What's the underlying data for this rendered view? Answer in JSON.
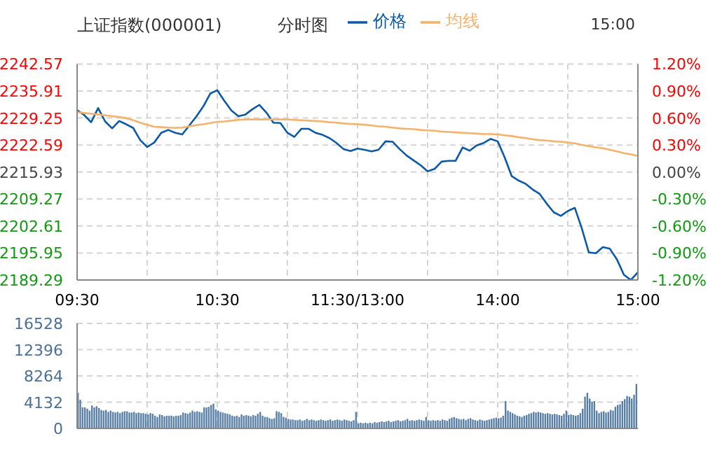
{
  "chart_data": [
    {
      "type": "line",
      "title": "上证指数(000001)",
      "subtitle": "分时图",
      "annotations": [
        "15:00"
      ],
      "categories": [
        "09:30",
        null,
        null,
        null,
        null,
        null,
        null,
        null,
        null,
        null,
        null,
        null,
        null,
        null,
        null,
        null,
        null,
        null,
        null,
        null,
        "10:30",
        null,
        null,
        null,
        null,
        null,
        null,
        null,
        null,
        null,
        null,
        null,
        null,
        null,
        null,
        null,
        null,
        null,
        null,
        null,
        "11:30/13:00",
        null,
        null,
        null,
        null,
        null,
        null,
        null,
        null,
        null,
        null,
        null,
        null,
        null,
        null,
        null,
        null,
        null,
        null,
        null,
        "14:00",
        null,
        null,
        null,
        null,
        null,
        null,
        null,
        null,
        null,
        null,
        null,
        null,
        null,
        null,
        null,
        null,
        null,
        null,
        null,
        "15:00"
      ],
      "series": [
        {
          "name": "价格",
          "color": "#0b5aa8",
          "values": [
            2231.2,
            2230.0,
            2228.2,
            2231.7,
            2228.4,
            2226.7,
            2228.5,
            2227.7,
            2226.8,
            2223.8,
            2222.1,
            2223.2,
            2225.6,
            2226.3,
            2225.6,
            2225.2,
            2227.4,
            2229.6,
            2232.1,
            2235.3,
            2236.1,
            2233.5,
            2231.1,
            2229.7,
            2230.1,
            2231.4,
            2232.5,
            2230.6,
            2228.1,
            2228.0,
            2225.6,
            2224.6,
            2226.6,
            2226.6,
            2225.6,
            2225.1,
            2224.3,
            2223.1,
            2221.6,
            2221.1,
            2221.7,
            2221.4,
            2221.0,
            2221.4,
            2223.5,
            2223.4,
            2221.6,
            2220.0,
            2218.8,
            2217.6,
            2216.1,
            2216.7,
            2218.5,
            2218.7,
            2218.7,
            2222.0,
            2221.2,
            2222.5,
            2223.1,
            2224.1,
            2223.5,
            2219.5,
            2214.9,
            2213.8,
            2213.0,
            2211.6,
            2210.5,
            2208.1,
            2206.0,
            2205.1,
            2206.3,
            2207.1,
            2202.0,
            2196.1,
            2195.9,
            2197.4,
            2197.0,
            2194.4,
            2190.6,
            2189.3,
            2191.2
          ]
        },
        {
          "name": "均线",
          "color": "#f5b26b",
          "values": [
            2230.7,
            2230.5,
            2230.3,
            2230.1,
            2229.9,
            2229.7,
            2229.5,
            2229.2,
            2228.7,
            2228.1,
            2227.6,
            2227.1,
            2227.0,
            2226.9,
            2226.8,
            2226.9,
            2227.2,
            2227.5,
            2227.7,
            2228.0,
            2228.3,
            2228.4,
            2228.6,
            2228.8,
            2228.9,
            2228.9,
            2228.9,
            2228.9,
            2228.9,
            2228.9,
            2228.9,
            2228.8,
            2228.7,
            2228.6,
            2228.5,
            2228.4,
            2228.2,
            2228.1,
            2227.9,
            2227.8,
            2227.7,
            2227.6,
            2227.4,
            2227.2,
            2227.1,
            2226.9,
            2226.7,
            2226.6,
            2226.5,
            2226.3,
            2226.2,
            2226.1,
            2225.9,
            2225.8,
            2225.7,
            2225.6,
            2225.5,
            2225.4,
            2225.3,
            2225.3,
            2225.2,
            2225.0,
            2224.8,
            2224.5,
            2224.3,
            2224.0,
            2223.8,
            2223.7,
            2223.5,
            2223.4,
            2223.2,
            2223.0,
            2222.6,
            2222.3,
            2222.0,
            2221.8,
            2221.4,
            2221.0,
            2220.6,
            2220.3,
            2219.9
          ]
        }
      ],
      "ylim": [
        2189.29,
        2242.57
      ],
      "yticks": [
        2189.29,
        2195.95,
        2202.61,
        2209.27,
        2215.93,
        2222.59,
        2229.25,
        2235.91,
        2242.57
      ],
      "y2lim": [
        -1.2,
        1.2
      ],
      "y2ticks": [
        {
          "value": -1.2,
          "label": "-1.20%"
        },
        {
          "value": -0.9,
          "label": "-0.90%"
        },
        {
          "value": -0.6,
          "label": "-0.60%"
        },
        {
          "value": -0.3,
          "label": "-0.30%"
        },
        {
          "value": 0,
          "label": "0.00%"
        },
        {
          "value": 0.3,
          "label": "0.30%"
        },
        {
          "value": 0.6,
          "label": "0.60%"
        },
        {
          "value": 0.9,
          "label": "0.90%"
        },
        {
          "value": 1.2,
          "label": "1.20%"
        }
      ],
      "grid": true,
      "legend": "top",
      "marker": "none",
      "line_style": "solid"
    },
    {
      "type": "bar",
      "color": "#5a7fa6",
      "categories": [
        null,
        null,
        null,
        null,
        null,
        null,
        null,
        null,
        null,
        null,
        null,
        null,
        null,
        null,
        null,
        null,
        null,
        null,
        null,
        null,
        null,
        null,
        null,
        null,
        null,
        null,
        null,
        null,
        null,
        null,
        null,
        null,
        null,
        null,
        null,
        null,
        null,
        null,
        null,
        null,
        null,
        null,
        null,
        null,
        null,
        null,
        null,
        null,
        null,
        null,
        null,
        null,
        null,
        null,
        null,
        null,
        null,
        null,
        null,
        null,
        null,
        null,
        null,
        null,
        null,
        null,
        null,
        null,
        null,
        null,
        null,
        null,
        null,
        null,
        null,
        null,
        null,
        null,
        null,
        null,
        null,
        null,
        null,
        null,
        null,
        null,
        null,
        null,
        null,
        null,
        null,
        null,
        null,
        null,
        null,
        null,
        null,
        null,
        null,
        null,
        null,
        null,
        null,
        null,
        null,
        null,
        null,
        null,
        null,
        null,
        null,
        null,
        null,
        null,
        null,
        null,
        null,
        null,
        null,
        null,
        null,
        null,
        null,
        null,
        null,
        null,
        null,
        null,
        null,
        null,
        null,
        null,
        null,
        null,
        null,
        null,
        null,
        null,
        null,
        null,
        null,
        null,
        null,
        null,
        null,
        null,
        null,
        null,
        null,
        null,
        null,
        null,
        null,
        null,
        null,
        null,
        null,
        null,
        null,
        null,
        null,
        null,
        null,
        null,
        null,
        null,
        null,
        null,
        null,
        null,
        null,
        null,
        null,
        null,
        null,
        null,
        null,
        null,
        null,
        null,
        null,
        null,
        null,
        null,
        null,
        null,
        null,
        null,
        null,
        null,
        null,
        null,
        null,
        null,
        null,
        null,
        null,
        null,
        null,
        null,
        null,
        null,
        null,
        null,
        null,
        null,
        null,
        null,
        null,
        null,
        null,
        null,
        null,
        null,
        null,
        null,
        null,
        null,
        null,
        null,
        null,
        null,
        null,
        null,
        null,
        null,
        null,
        null,
        null,
        null,
        null,
        null,
        null,
        null,
        null,
        null,
        null,
        null,
        null,
        null
      ],
      "values": [
        5600,
        4500,
        3300,
        3300,
        3100,
        2800,
        3600,
        3300,
        3500,
        3200,
        2900,
        2800,
        2900,
        2600,
        2800,
        2600,
        2500,
        2600,
        2400,
        2600,
        2700,
        2700,
        2500,
        2500,
        2600,
        2400,
        2500,
        2400,
        2400,
        2300,
        2200,
        2400,
        2300,
        2000,
        1800,
        2200,
        2100,
        1900,
        2000,
        2000,
        2000,
        1900,
        2000,
        2000,
        2100,
        2500,
        2400,
        2300,
        2500,
        2800,
        2600,
        2700,
        2600,
        2500,
        3300,
        3300,
        3400,
        3700,
        3900,
        3000,
        2800,
        2600,
        2500,
        2400,
        2300,
        2200,
        2000,
        1900,
        2000,
        1800,
        2200,
        2000,
        2100,
        2000,
        1900,
        2100,
        2000,
        2300,
        2600,
        2000,
        1800,
        1800,
        1600,
        1500,
        1600,
        2700,
        2600,
        2400,
        1800,
        1700,
        1500,
        1400,
        1400,
        1300,
        1300,
        1400,
        1200,
        1300,
        1500,
        1300,
        1400,
        1300,
        1200,
        1300,
        1400,
        1300,
        1200,
        1300,
        1400,
        1200,
        1300,
        1400,
        1300,
        1200,
        1400,
        1300,
        1200,
        1100,
        1300,
        2600,
        800,
        900,
        800,
        900,
        800,
        900,
        800,
        1000,
        900,
        1000,
        1100,
        1000,
        1100,
        1200,
        1000,
        1100,
        1200,
        1300,
        1100,
        1200,
        1300,
        1500,
        1200,
        1300,
        1200,
        1300,
        1400,
        1300,
        1200,
        1800,
        1300,
        1200,
        1300,
        1200,
        1300,
        1200,
        1400,
        1300,
        1200,
        1500,
        1700,
        1800,
        1600,
        1500,
        1400,
        1500,
        1300,
        1500,
        1600,
        1400,
        1300,
        1200,
        1400,
        1300,
        1200,
        1300,
        1400,
        1500,
        1600,
        1700,
        1600,
        1700,
        2000,
        4300,
        2800,
        2600,
        2400,
        2200,
        2000,
        1900,
        1800,
        2000,
        2100,
        2300,
        2400,
        2600,
        2500,
        2600,
        2500,
        2400,
        2300,
        2400,
        2300,
        2200,
        2300,
        2200,
        2100,
        2000,
        2300,
        2800,
        2100,
        2200,
        2100,
        2000,
        2100,
        2400,
        3100,
        5000,
        5600,
        4700,
        4200,
        4300,
        2800,
        2400,
        2600,
        2700,
        2500,
        2600,
        2900,
        2800,
        3400,
        3700,
        3800,
        4300,
        4600,
        5100,
        5000,
        4700,
        5300,
        7000
      ],
      "ylim": [
        0,
        16528
      ],
      "yticks": [
        0,
        4132,
        8264,
        12396,
        16528
      ],
      "grid": true,
      "tick_labels": "y"
    }
  ]
}
